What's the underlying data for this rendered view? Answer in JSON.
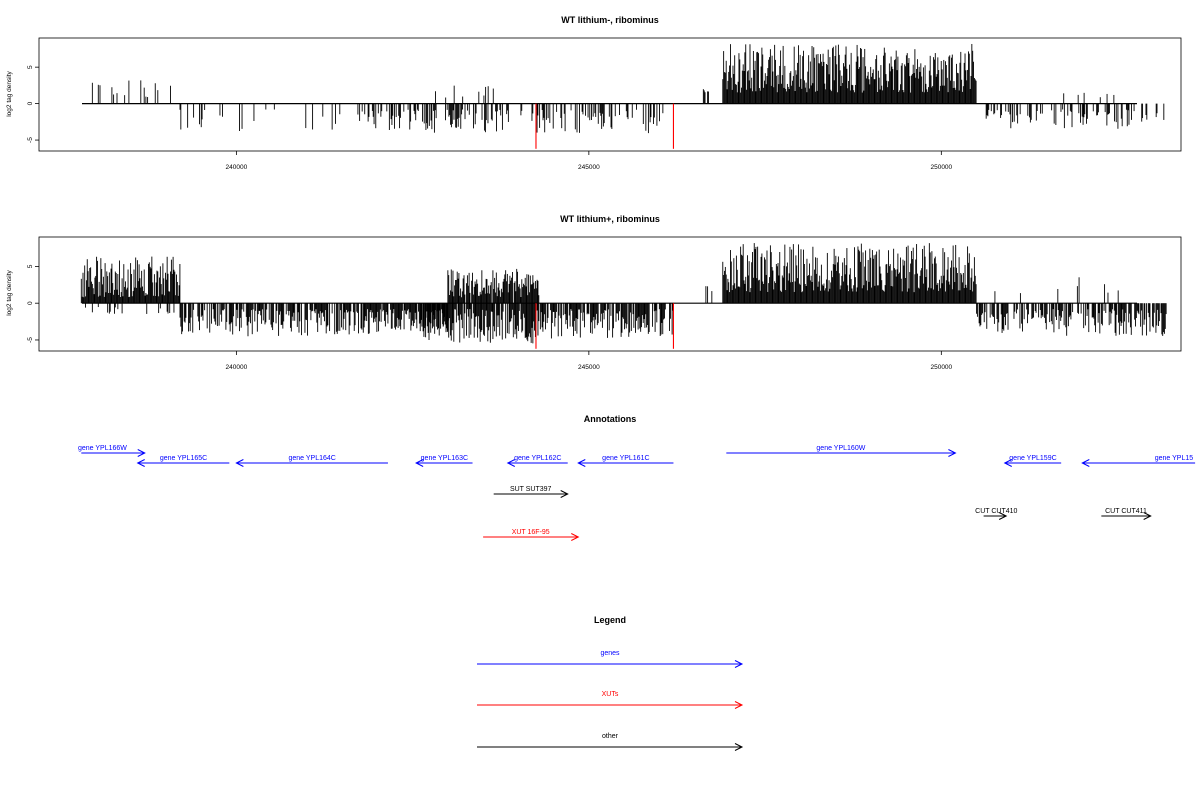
{
  "colors": {
    "genes": "#0000ff",
    "xuts": "#ff0000",
    "other": "#000000"
  },
  "chart_data": [
    {
      "id": "top",
      "type": "bar",
      "title": "WT lithium-, ribominus",
      "ylabel": "log2 tag density",
      "xlim": [
        237200,
        253400
      ],
      "ylim": [
        -6.5,
        9
      ],
      "xticks": [
        240000,
        245000,
        250000
      ],
      "yticks": [
        -5,
        0,
        5
      ],
      "regions": [
        {
          "start": 237800,
          "end": 239200,
          "sign": 1,
          "density": 0.12,
          "ymin": 0.8,
          "ymax": 3.2
        },
        {
          "start": 239200,
          "end": 241600,
          "sign": -1,
          "density": 0.08,
          "ymin": 0.8,
          "ymax": 3.8
        },
        {
          "start": 241700,
          "end": 244000,
          "sign": -1,
          "density": 0.45,
          "ymin": 0.8,
          "ymax": 4.0
        },
        {
          "start": 242800,
          "end": 243800,
          "sign": 1,
          "density": 0.1,
          "ymin": 0.8,
          "ymax": 2.8
        },
        {
          "start": 244000,
          "end": 246200,
          "sign": -1,
          "density": 0.35,
          "ymin": 0.8,
          "ymax": 4.3
        },
        {
          "start": 246600,
          "end": 246700,
          "sign": 1,
          "density": 0.5,
          "ymin": 1.5,
          "ymax": 2.0
        },
        {
          "start": 246900,
          "end": 250500,
          "sign": 1,
          "density": 1.0,
          "ymin": 1.5,
          "ymax": 8.2
        },
        {
          "start": 250600,
          "end": 253200,
          "sign": -1,
          "density": 0.35,
          "ymin": 0.8,
          "ymax": 3.5
        },
        {
          "start": 251700,
          "end": 252600,
          "sign": 1,
          "density": 0.05,
          "ymin": 0.8,
          "ymax": 1.6
        }
      ],
      "highlights": [
        {
          "x": 244250,
          "y": -6.2
        },
        {
          "x": 246200,
          "y": -6.2
        }
      ]
    },
    {
      "id": "bottom",
      "type": "bar",
      "title": "WT lithium+, ribominus",
      "ylabel": "log2 tag density",
      "xlim": [
        237200,
        253400
      ],
      "ylim": [
        -6.5,
        9
      ],
      "xticks": [
        240000,
        245000,
        250000
      ],
      "yticks": [
        -5,
        0,
        5
      ],
      "regions": [
        {
          "start": 237800,
          "end": 239200,
          "sign": 1,
          "density": 1.0,
          "ymin": 0.8,
          "ymax": 6.5
        },
        {
          "start": 237800,
          "end": 239200,
          "sign": -1,
          "density": 0.1,
          "ymin": 0.5,
          "ymax": 1.5
        },
        {
          "start": 239200,
          "end": 241800,
          "sign": -1,
          "density": 0.7,
          "ymin": 0.8,
          "ymax": 4.5
        },
        {
          "start": 241800,
          "end": 243000,
          "sign": -1,
          "density": 0.9,
          "ymin": 0.8,
          "ymax": 4.2
        },
        {
          "start": 242600,
          "end": 243000,
          "sign": -1,
          "density": 0.6,
          "ymin": 2.0,
          "ymax": 5.8
        },
        {
          "start": 243000,
          "end": 244300,
          "sign": 1,
          "density": 0.9,
          "ymin": 0.8,
          "ymax": 4.8
        },
        {
          "start": 243000,
          "end": 244300,
          "sign": -1,
          "density": 0.9,
          "ymin": 0.8,
          "ymax": 5.5
        },
        {
          "start": 244300,
          "end": 246200,
          "sign": -1,
          "density": 0.8,
          "ymin": 0.8,
          "ymax": 4.8
        },
        {
          "start": 246600,
          "end": 246900,
          "sign": 1,
          "density": 0.2,
          "ymin": 1.5,
          "ymax": 2.5
        },
        {
          "start": 246900,
          "end": 250500,
          "sign": 1,
          "density": 1.0,
          "ymin": 1.5,
          "ymax": 8.2
        },
        {
          "start": 250500,
          "end": 253200,
          "sign": -1,
          "density": 0.7,
          "ymin": 0.8,
          "ymax": 4.5
        },
        {
          "start": 250700,
          "end": 252600,
          "sign": 1,
          "density": 0.06,
          "ymin": 0.8,
          "ymax": 3.6
        }
      ],
      "highlights": [
        {
          "x": 244250,
          "y": -6.2
        },
        {
          "x": 246200,
          "y": -6.2
        }
      ]
    }
  ],
  "annotations": {
    "title": "Annotations",
    "features": [
      {
        "label": "gene YPL166W",
        "type": "gene",
        "strand": "+",
        "start": 237800,
        "end": 238700,
        "row": 1,
        "label_x": 238100
      },
      {
        "label": "gene YPL165C",
        "type": "gene",
        "strand": "-",
        "start": 238600,
        "end": 239900,
        "row": 2
      },
      {
        "label": "gene YPL164C",
        "type": "gene",
        "strand": "-",
        "start": 240000,
        "end": 242150,
        "row": 2
      },
      {
        "label": "gene YPL163C",
        "type": "gene",
        "strand": "-",
        "start": 242550,
        "end": 243350,
        "row": 2
      },
      {
        "label": "gene YPL162C",
        "type": "gene",
        "strand": "-",
        "start": 243850,
        "end": 244700,
        "row": 2
      },
      {
        "label": "gene YPL161C",
        "type": "gene",
        "strand": "-",
        "start": 244850,
        "end": 246200,
        "row": 2
      },
      {
        "label": "gene YPL160W",
        "type": "gene",
        "strand": "+",
        "start": 246950,
        "end": 250200,
        "row": 1
      },
      {
        "label": "gene YPL159C",
        "type": "gene",
        "strand": "-",
        "start": 250900,
        "end": 251700,
        "row": 2
      },
      {
        "label": "gene YPL15",
        "type": "gene",
        "strand": "-",
        "start": 252000,
        "end": 253600,
        "row": 2,
        "label_x": 253300
      },
      {
        "label": "SUT SUT397",
        "type": "other",
        "strand": "+",
        "start": 243650,
        "end": 244700,
        "row": 3
      },
      {
        "label": "XUT 16F-95",
        "type": "xut",
        "strand": "+",
        "start": 243500,
        "end": 244850,
        "row": 5
      },
      {
        "label": "CUT CUT410",
        "type": "other",
        "strand": "+",
        "start": 250600,
        "end": 250920,
        "row": 4,
        "label_x": 250780
      },
      {
        "label": "CUT CUT411",
        "type": "other",
        "strand": "+",
        "start": 252270,
        "end": 252970,
        "row": 4,
        "label_x": 252620
      }
    ]
  },
  "legend": {
    "title": "Legend",
    "items": [
      {
        "label": "genes",
        "type": "gene"
      },
      {
        "label": "XUTs",
        "type": "xut"
      },
      {
        "label": "other",
        "type": "other"
      }
    ]
  }
}
